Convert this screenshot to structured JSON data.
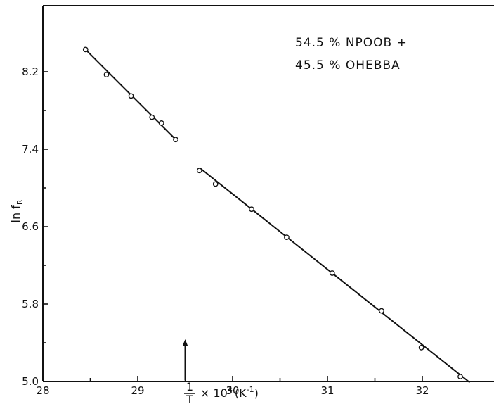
{
  "chart_data": {
    "type": "scatter",
    "xlabel": {
      "numerator": "1",
      "denominator": "T",
      "middle": "× 10",
      "exponent": "4",
      "unit_open": "(K",
      "unit_exp": "-1",
      "unit_close": ")"
    },
    "ylabel": {
      "main": "ln f",
      "sub": "R"
    },
    "xlim": [
      28,
      32.5
    ],
    "ylim": [
      5.0,
      8.6
    ],
    "x_ticks": [
      28,
      29,
      30,
      31,
      32
    ],
    "x_tick_labels": [
      "28",
      "29",
      "30",
      "31",
      "32"
    ],
    "y_ticks": [
      5.0,
      5.8,
      6.6,
      7.4,
      8.2
    ],
    "y_tick_labels": [
      "5.0",
      "5.8",
      "6.6",
      "7.4",
      "8.2"
    ],
    "legend": {
      "line1": "54.5 % NPOOB +",
      "line2": "45.5 % OHEBBA"
    },
    "series": [
      {
        "x": [
          28.45,
          28.67,
          28.93,
          29.15,
          29.25,
          29.4
        ],
        "y": [
          8.43,
          8.17,
          7.95,
          7.73,
          7.67,
          7.5
        ],
        "fit": {
          "x": [
            28.45,
            29.4
          ],
          "y": [
            8.43,
            7.5
          ]
        }
      },
      {
        "x": [
          29.65,
          29.82,
          30.2,
          30.57,
          31.05,
          31.57,
          31.99,
          32.4
        ],
        "y": [
          7.18,
          7.04,
          6.78,
          6.49,
          6.12,
          5.73,
          5.35,
          5.05
        ],
        "fit": {
          "x": [
            29.65,
            32.5
          ],
          "y": [
            7.21,
            4.99
          ]
        }
      }
    ],
    "arrow_marker_x": 29.5
  }
}
